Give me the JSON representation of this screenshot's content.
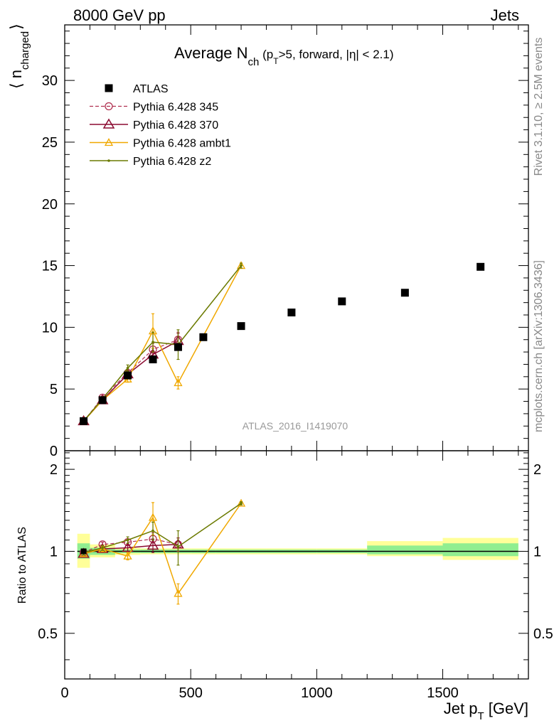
{
  "header": {
    "left": "8000 GeV pp",
    "right": "Jets"
  },
  "side_labels": {
    "rivet": "Rivet 3.1.10, ≥ 2.5M events",
    "mcplots": "mcplots.cern.ch [arXiv:1306.3436]"
  },
  "watermark": "ATLAS_2016_I1419070",
  "chart_data": [
    {
      "type": "scatter",
      "panel": "main",
      "title": {
        "main": "Average N",
        "sub": "ch",
        "cond_a": " (p",
        "cond_sub": "T",
        "cond_b": ">5, forward, |η| < 2.1)"
      },
      "ylabel": {
        "pre": "⟨ n",
        "sub": "charged",
        "post": "⟩"
      },
      "xlim": [
        0,
        1840
      ],
      "ylim": [
        0,
        34.5
      ],
      "y_ticks": [
        {
          "v": 0,
          "label": "0"
        },
        {
          "v": 5,
          "label": "5"
        },
        {
          "v": 10,
          "label": "10"
        },
        {
          "v": 15,
          "label": "15"
        },
        {
          "v": 20,
          "label": "20"
        },
        {
          "v": 25,
          "label": "25"
        },
        {
          "v": 30,
          "label": "30"
        }
      ],
      "legend_position": "top-left",
      "legend": [
        {
          "key": "atlas",
          "label": "ATLAS"
        },
        {
          "key": "p345",
          "label": "Pythia 6.428 345"
        },
        {
          "key": "p370",
          "label": "Pythia 6.428 370"
        },
        {
          "key": "ambt1",
          "label": "Pythia 6.428 ambt1"
        },
        {
          "key": "z2",
          "label": "Pythia 6.428 z2"
        }
      ],
      "data": {
        "name": "ATLAS",
        "x": [
          75,
          150,
          250,
          350,
          450,
          550,
          700,
          900,
          1100,
          1350,
          1650
        ],
        "y": [
          2.4,
          4.1,
          6.1,
          7.4,
          8.4,
          9.2,
          10.1,
          11.2,
          12.1,
          12.8,
          14.9
        ]
      },
      "series": [
        {
          "key": "p345",
          "name": "Pythia 6.428 345",
          "color": "#b03050",
          "x": [
            75,
            150,
            250,
            350,
            450
          ],
          "y": [
            2.4,
            4.3,
            6.3,
            8.2,
            9.0
          ],
          "err": [
            0.1,
            0.15,
            0.25,
            0.5,
            0.6
          ]
        },
        {
          "key": "p370",
          "name": "Pythia 6.428 370",
          "color": "#8b0a30",
          "x": [
            75,
            150,
            250,
            350,
            450
          ],
          "y": [
            2.4,
            4.1,
            6.2,
            7.8,
            8.9
          ],
          "err": [
            0.1,
            0.15,
            0.25,
            0.5,
            0.6
          ]
        },
        {
          "key": "ambt1",
          "name": "Pythia 6.428 ambt1",
          "color": "#f0a800",
          "x": [
            75,
            150,
            250,
            350,
            450,
            700
          ],
          "y": [
            2.4,
            4.1,
            5.8,
            9.7,
            5.5,
            15.0
          ],
          "err": [
            0.1,
            0.15,
            0.25,
            1.4,
            0.5,
            0.2
          ]
        },
        {
          "key": "z2",
          "name": "Pythia 6.428 z2",
          "color": "#6b7a00",
          "x": [
            75,
            150,
            250,
            350,
            450,
            700
          ],
          "y": [
            2.4,
            4.2,
            6.7,
            8.8,
            8.6,
            15.0
          ],
          "err": [
            0.1,
            0.15,
            0.25,
            0.8,
            1.2,
            0.2
          ]
        }
      ]
    },
    {
      "type": "scatter",
      "panel": "ratio",
      "ylabel": "Ratio to ATLAS",
      "xlabel": {
        "pre": "Jet p",
        "sub": "T",
        "post": " [GeV]"
      },
      "xlim": [
        0,
        1840
      ],
      "ylim": [
        0.34,
        2.34
      ],
      "log_y": true,
      "x_ticks": [
        {
          "v": 0,
          "label": "0"
        },
        {
          "v": 500,
          "label": "500"
        },
        {
          "v": 1000,
          "label": "1000"
        },
        {
          "v": 1500,
          "label": "1500"
        }
      ],
      "y_ticks": [
        {
          "v": 0.5,
          "label": "0.5"
        },
        {
          "v": 1,
          "label": "1"
        },
        {
          "v": 2,
          "label": "2"
        }
      ],
      "bands": [
        {
          "x0": 50,
          "x1": 100,
          "yellow": [
            0.87,
            1.16
          ],
          "green": [
            0.94,
            1.07
          ]
        },
        {
          "x0": 100,
          "x1": 200,
          "yellow": [
            0.95,
            1.06
          ],
          "green": [
            0.97,
            1.03
          ]
        },
        {
          "x0": 200,
          "x1": 300,
          "yellow": [
            0.97,
            1.03
          ],
          "green": [
            0.985,
            1.015
          ]
        },
        {
          "x0": 300,
          "x1": 400,
          "yellow": [
            0.975,
            1.025
          ],
          "green": [
            0.985,
            1.015
          ]
        },
        {
          "x0": 400,
          "x1": 500,
          "yellow": [
            0.975,
            1.025
          ],
          "green": [
            0.985,
            1.015
          ]
        },
        {
          "x0": 500,
          "x1": 600,
          "yellow": [
            0.975,
            1.025
          ],
          "green": [
            0.985,
            1.015
          ]
        },
        {
          "x0": 600,
          "x1": 800,
          "yellow": [
            0.975,
            1.025
          ],
          "green": [
            0.985,
            1.015
          ]
        },
        {
          "x0": 800,
          "x1": 1000,
          "yellow": [
            0.975,
            1.025
          ],
          "green": [
            0.985,
            1.015
          ]
        },
        {
          "x0": 1000,
          "x1": 1200,
          "yellow": [
            0.975,
            1.025
          ],
          "green": [
            0.985,
            1.015
          ]
        },
        {
          "x0": 1200,
          "x1": 1500,
          "yellow": [
            0.96,
            1.09
          ],
          "green": [
            0.975,
            1.05
          ]
        },
        {
          "x0": 1500,
          "x1": 1800,
          "yellow": [
            0.93,
            1.12
          ],
          "green": [
            0.96,
            1.07
          ]
        }
      ],
      "series": [
        {
          "key": "p345",
          "x": [
            75,
            150,
            250,
            350,
            450
          ],
          "y": [
            0.99,
            1.06,
            1.08,
            1.11,
            1.06
          ],
          "err": [
            0.02,
            0.02,
            0.03,
            0.06,
            0.06
          ]
        },
        {
          "key": "p370",
          "x": [
            75,
            150,
            250,
            350,
            450
          ],
          "y": [
            0.98,
            1.02,
            1.03,
            1.05,
            1.06
          ],
          "err": [
            0.02,
            0.02,
            0.03,
            0.06,
            0.06
          ]
        },
        {
          "key": "ambt1",
          "x": [
            75,
            150,
            250,
            350,
            450,
            700
          ],
          "y": [
            0.98,
            1.02,
            0.96,
            1.33,
            0.7,
            1.5
          ],
          "err": [
            0.02,
            0.02,
            0.03,
            0.18,
            0.06,
            0.02
          ]
        },
        {
          "key": "z2",
          "x": [
            75,
            150,
            250,
            350,
            450,
            700
          ],
          "y": [
            0.99,
            1.03,
            1.1,
            1.19,
            1.04,
            1.5
          ],
          "err": [
            0.02,
            0.02,
            0.03,
            0.09,
            0.15,
            0.02
          ]
        }
      ]
    }
  ]
}
